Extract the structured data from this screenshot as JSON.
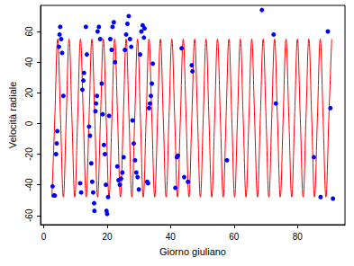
{
  "chart_data": {
    "type": "scatter",
    "x_label": "Giorno giuliano",
    "y_label": "Velocità radiale",
    "xlim": [
      -1,
      95
    ],
    "ylim": [
      -66,
      77
    ],
    "xticks": [
      0,
      20,
      40,
      60,
      80
    ],
    "yticks": [
      -60,
      -40,
      -20,
      0,
      20,
      40,
      60
    ],
    "grid": false,
    "series": [
      {
        "type": "line",
        "color": "#ff0000",
        "line_style": "solid",
        "x": [
          2.6,
          3.5,
          4.4,
          5.3,
          6.2,
          7.1,
          8.0,
          8.9,
          9.8,
          10.7,
          11.6,
          12.5,
          13.4,
          14.3,
          15.2,
          16.1,
          17.0,
          17.9,
          18.8,
          19.7,
          20.6,
          21.5,
          22.4,
          23.3,
          24.2,
          25.1,
          26.0,
          26.9,
          27.8,
          28.7,
          29.6,
          30.5,
          31.4,
          32.3,
          33.2,
          34.1,
          35.0,
          35.9,
          36.8,
          37.7,
          38.6,
          39.5,
          40.4,
          41.3,
          42.2,
          43.1,
          44.0,
          44.9,
          45.8,
          46.7,
          47.6,
          48.5,
          49.4,
          50.3,
          51.2,
          52.1,
          53.0,
          53.9,
          54.8,
          55.7,
          56.6,
          57.5,
          58.4,
          59.3,
          60.2,
          61.1,
          62.0,
          62.9,
          63.8,
          64.7,
          65.6,
          66.5,
          67.4,
          68.3,
          69.2,
          70.1,
          71.0,
          71.9,
          72.8,
          73.7,
          74.6,
          75.5,
          76.4,
          77.3,
          78.2,
          79.1,
          80.0,
          80.9,
          81.8,
          82.7,
          83.6,
          84.5,
          85.4,
          86.3,
          87.2,
          88.1,
          89.0,
          89.9,
          90.8
        ],
        "values": [
          -48,
          3.5,
          55,
          3.5,
          -48,
          3.5,
          55,
          3.5,
          -48,
          3.5,
          55,
          3.5,
          -48,
          3.5,
          55,
          3.5,
          -48,
          3.5,
          55,
          3.5,
          -48,
          3.5,
          55,
          3.5,
          -48,
          3.5,
          55,
          3.5,
          -48,
          3.5,
          55,
          3.5,
          -48,
          3.5,
          55,
          3.5,
          -48,
          3.5,
          55,
          3.5,
          -48,
          3.5,
          55,
          3.5,
          -48,
          3.5,
          55,
          3.5,
          -48,
          3.5,
          55,
          3.5,
          -48,
          3.5,
          55,
          3.5,
          -48,
          3.5,
          55,
          3.5,
          -48,
          3.5,
          55,
          3.5,
          -48,
          3.5,
          55,
          3.5,
          -48,
          3.5,
          55,
          3.5,
          -48,
          3.5,
          55,
          3.5,
          -48,
          3.5,
          55,
          3.5,
          -48,
          3.5,
          55,
          3.5,
          -48,
          3.5,
          55,
          3.5,
          -48,
          3.5,
          55,
          3.5,
          -48,
          3.5,
          55,
          3.5,
          -48,
          3.5,
          55
        ]
      },
      {
        "type": "scatter",
        "color": "#0000ff",
        "marker": "circle",
        "x": [
          2.8,
          3.2,
          3.5,
          3.9,
          4.1,
          4.3,
          4.8,
          5.0,
          5.2,
          5.5,
          5.8,
          6.2,
          11.5,
          11.8,
          12.2,
          12.5,
          12.7,
          13.3,
          13.6,
          14.3,
          14.6,
          15.0,
          15.3,
          15.6,
          15.9,
          16.0,
          16.3,
          16.5,
          16.8,
          17.0,
          17.4,
          17.8,
          18.3,
          18.6,
          19.0,
          19.3,
          19.6,
          19.8,
          20.0,
          20.3,
          20.6,
          21.0,
          21.4,
          21.7,
          22.1,
          22.5,
          23.2,
          23.6,
          24.0,
          24.4,
          24.8,
          25.2,
          25.6,
          26.0,
          26.4,
          26.8,
          27.2,
          27.6,
          28.0,
          28.4,
          28.8,
          29.2,
          29.6,
          30.0,
          30.4,
          30.8,
          31.2,
          31.6,
          31.8,
          32.6,
          32.9,
          33.2,
          33.5,
          33.8,
          34.1,
          34.4,
          41.5,
          42.0,
          42.3,
          43.5,
          44.3,
          45.5,
          46.7,
          46.9,
          57.8,
          68.8,
          72.5,
          73.2,
          85.2,
          87.3,
          89.6,
          90.4,
          91.2
        ],
        "values": [
          -41,
          -47,
          -47,
          -20,
          -13,
          -5,
          50,
          58,
          63,
          55,
          46,
          18,
          -39,
          -45,
          22,
          28,
          33,
          63,
          45,
          -2,
          -8,
          -26,
          -38,
          -45,
          -52,
          -57,
          8,
          13,
          18,
          60,
          63,
          55,
          26,
          6,
          -14,
          -20,
          -40,
          -57,
          -59,
          -48,
          5,
          55,
          48,
          63,
          66,
          40,
          -28,
          -37,
          -40,
          -36,
          -32,
          -22,
          48,
          58,
          65,
          70,
          55,
          50,
          2,
          -13,
          -24,
          -32,
          -35,
          -43,
          45,
          60,
          64,
          56,
          62,
          -38,
          -39,
          10,
          13,
          18,
          26,
          39,
          -42,
          -22,
          -21,
          49,
          -35,
          -38,
          38,
          34,
          -24,
          74,
          58,
          13,
          -22,
          -48,
          60,
          10,
          -49
        ]
      }
    ]
  }
}
